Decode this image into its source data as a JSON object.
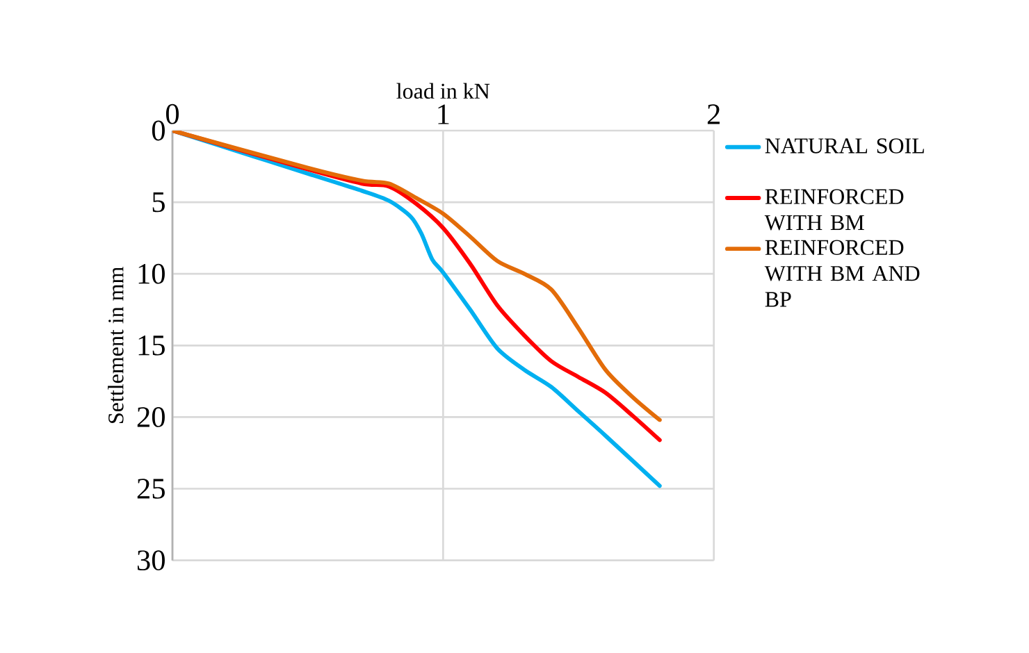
{
  "chart_data": {
    "type": "line",
    "xlabel": "load in kN",
    "ylabel": "Settlement in mm",
    "xlim": [
      0,
      2
    ],
    "xticks": [
      0,
      1,
      2
    ],
    "ylim": [
      30,
      0
    ],
    "yticks": [
      0,
      5,
      10,
      15,
      20,
      25,
      30
    ],
    "grid": true,
    "legend": "right",
    "marker": "none",
    "series": [
      {
        "name": "NATURAL SOIL",
        "color": "#00b0f0",
        "x": [
          0,
          0.3,
          0.5,
          0.7,
          0.8,
          0.88,
          0.92,
          0.96,
          1.0,
          1.1,
          1.2,
          1.3,
          1.4,
          1.5,
          1.6,
          1.8
        ],
        "values": [
          0,
          1.8,
          3.0,
          4.2,
          4.9,
          6.0,
          7.2,
          9.0,
          9.9,
          12.5,
          15.2,
          16.7,
          17.9,
          19.6,
          21.3,
          24.8
        ]
      },
      {
        "name": "REINFORCED WITH BM",
        "color": "#ff0000",
        "x": [
          0,
          0.5,
          0.7,
          0.8,
          0.9,
          1.0,
          1.1,
          1.2,
          1.3,
          1.4,
          1.5,
          1.6,
          1.7,
          1.8
        ],
        "values": [
          0,
          2.7,
          3.7,
          3.9,
          5.1,
          6.8,
          9.3,
          12.2,
          14.3,
          16.1,
          17.2,
          18.3,
          19.9,
          21.6
        ]
      },
      {
        "name": "REINFORCED WITH BM AND BP",
        "color": "#e36c09",
        "x": [
          0,
          0.5,
          0.7,
          0.8,
          0.9,
          1.0,
          1.1,
          1.2,
          1.3,
          1.4,
          1.5,
          1.6,
          1.7,
          1.8
        ],
        "values": [
          0,
          2.6,
          3.5,
          3.7,
          4.7,
          5.8,
          7.4,
          9.1,
          10.0,
          11.1,
          13.8,
          16.7,
          18.6,
          20.2
        ]
      }
    ]
  }
}
